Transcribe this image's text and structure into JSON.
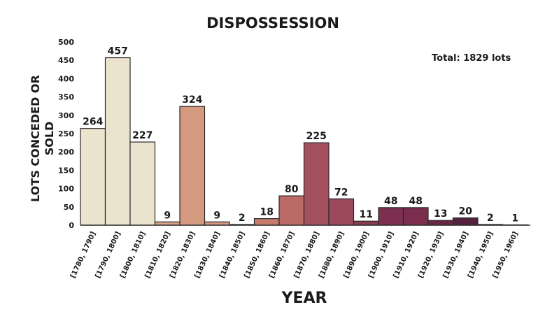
{
  "chart_data": {
    "type": "bar",
    "title": "DISPOSSESSION",
    "xlabel": "YEAR",
    "ylabel_lines": [
      "LOTS CONCEDED OR",
      "SOLD"
    ],
    "annotation": "Total:  1829 lots",
    "ylim": [
      0,
      500
    ],
    "yticks": [
      0,
      50,
      100,
      150,
      200,
      250,
      300,
      350,
      400,
      450,
      500
    ],
    "grid": false,
    "categories": [
      "[1780, 1790]",
      "[1790, 1800]",
      "[1800, 1810]",
      "[1810, 1820]",
      "[1820, 1830]",
      "[1830, 1840]",
      "[1840, 1850]",
      "[1850, 1860]",
      "[1860, 1870]",
      "[1870, 1880]",
      "[1880, 1890]",
      "[1890, 1900]",
      "[1900, 1910]",
      "[1910, 1920]",
      "[1920, 1930]",
      "[1930, 1940]",
      "[1940, 1950]",
      "[1950, 1960]"
    ],
    "values": [
      264,
      457,
      227,
      9,
      324,
      9,
      2,
      18,
      80,
      225,
      72,
      11,
      48,
      48,
      13,
      20,
      2,
      1
    ],
    "colors": [
      "#ebe3cd",
      "#ebe3cd",
      "#ebe3cd",
      "#d9a388",
      "#d49a80",
      "#d49a80",
      "#c9836f",
      "#c47b6c",
      "#bb6a68",
      "#a5505f",
      "#9c4a5b",
      "#8a3c55",
      "#7c2f4e",
      "#7a2d4d",
      "#6a2545",
      "#54213e",
      "#4a1d38",
      "#3f1a32"
    ]
  }
}
